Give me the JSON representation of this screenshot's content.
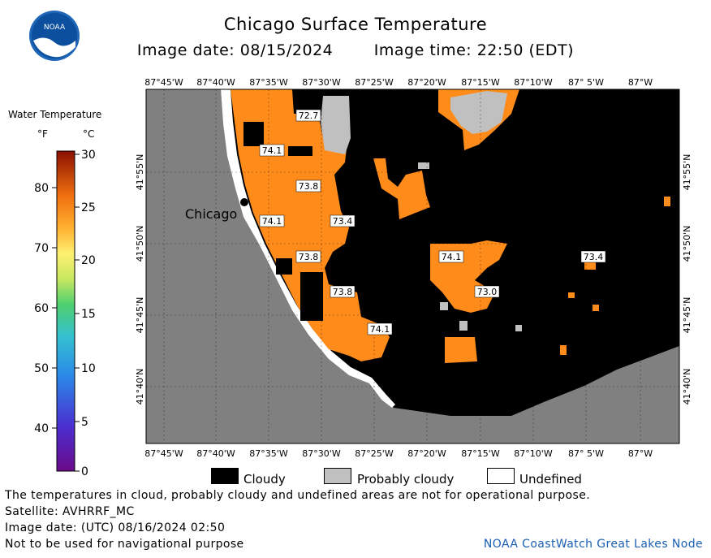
{
  "header": {
    "title": "Chicago Surface Temperature",
    "image_date": "Image date: 08/15/2024",
    "image_time": "Image time: 22:50 (EDT)"
  },
  "logo": {
    "text": "NOAA",
    "icon": "noaa-logo-icon"
  },
  "legend": {
    "title": "Water Temperature",
    "unit_f": "°F",
    "unit_c": "°C",
    "f_ticks": [
      "80",
      "70",
      "60",
      "50",
      "40"
    ],
    "c_ticks": [
      "30",
      "25",
      "20",
      "15",
      "10",
      "5",
      "0"
    ]
  },
  "map": {
    "lon_labels": [
      "87°45'W",
      "87°40'W",
      "87°35'W",
      "87°30'W",
      "87°25'W",
      "87°20'W",
      "87°15'W",
      "87°10'W",
      "87° 5'W",
      "87°W"
    ],
    "lat_labels": [
      "41°55'N",
      "41°50'N",
      "41°45'N",
      "41°40'N"
    ],
    "city_label": "Chicago",
    "temperature_labels": [
      {
        "id": "t1",
        "value": "72.7"
      },
      {
        "id": "t2",
        "value": "74.1"
      },
      {
        "id": "t3",
        "value": "73.8"
      },
      {
        "id": "t4",
        "value": "74.1"
      },
      {
        "id": "t5",
        "value": "73.4"
      },
      {
        "id": "t6",
        "value": "73.8"
      },
      {
        "id": "t7",
        "value": "74.1"
      },
      {
        "id": "t8",
        "value": "73.4"
      },
      {
        "id": "t9",
        "value": "73.0"
      },
      {
        "id": "t10",
        "value": "73.8"
      },
      {
        "id": "t11",
        "value": "74.1"
      }
    ],
    "colors": {
      "land": "#808080",
      "cloudy": "#000000",
      "probably_cloudy": "#c0c0c0",
      "undefined": "#ffffff",
      "water_warm": "#ff8c1a"
    }
  },
  "key": {
    "cloudy": "Cloudy",
    "probably_cloudy": "Probably cloudy",
    "undefined": "Undefined"
  },
  "notes": {
    "disclaimer": "The temperatures in cloud, probably cloudy and undefined areas are not for operational purpose.",
    "satellite": "Satellite: AVHRRF_MC",
    "utc_date": "Image date: (UTC) 08/16/2024  02:50",
    "navigation": "Not to be used for navigational purpose",
    "source": "NOAA CoastWatch Great Lakes Node"
  }
}
